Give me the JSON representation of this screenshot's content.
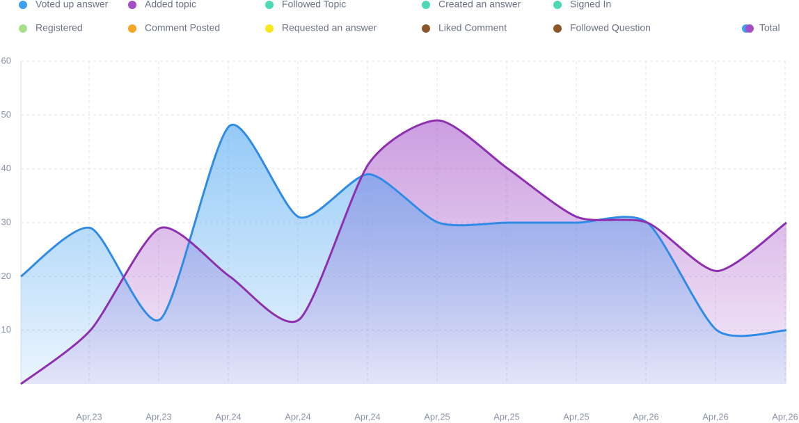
{
  "chart_data": {
    "type": "area",
    "categories": [
      null,
      "Apr,23",
      "Apr,23",
      "Apr,24",
      "Apr,24",
      "Apr,24",
      "Apr,25",
      "Apr,25",
      "Apr,25",
      "Apr,26",
      "Apr,26",
      "Apr,26"
    ],
    "series": [
      {
        "name": "Voted up answer",
        "color": "#3f9ff0",
        "values": [
          20,
          29,
          12,
          48,
          31,
          39,
          30,
          30,
          30,
          30,
          10,
          10
        ]
      },
      {
        "name": "Added topic",
        "color": "#a24fc7",
        "values": [
          0,
          10,
          29,
          20,
          12,
          41,
          49,
          40,
          31,
          30,
          21,
          30
        ]
      },
      {
        "name": "Followed Topic",
        "color": "#4dd9b5"
      },
      {
        "name": "Created an answer",
        "color": "#4dd9b5"
      },
      {
        "name": "Signed In",
        "color": "#4dd9b5"
      },
      {
        "name": "Registered",
        "color": "#a8e08a"
      },
      {
        "name": "Comment Posted",
        "color": "#f5a623"
      },
      {
        "name": "Requested an answer",
        "color": "#f8e71c"
      },
      {
        "name": "Liked Comment",
        "color": "#8b572a"
      },
      {
        "name": "Followed Question",
        "color": "#8b572a"
      }
    ],
    "total_legend": {
      "label": "Total",
      "colors": [
        "#3f9ff0",
        "#a24fc7"
      ]
    },
    "ylim": [
      0,
      60
    ],
    "yticks": [
      10,
      20,
      30,
      40,
      50,
      60
    ],
    "grid": true
  }
}
